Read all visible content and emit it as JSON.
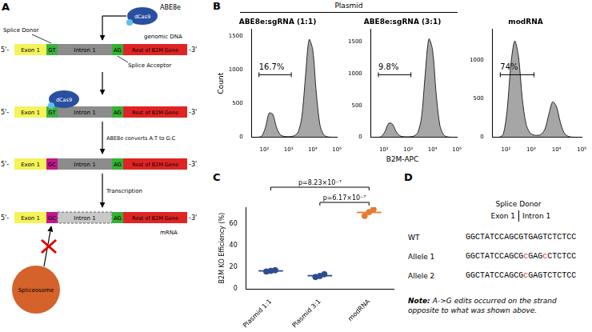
{
  "panel_a": {
    "label": "A",
    "enzyme": "ABE8e",
    "protein": "dCas9",
    "dna_label": "genomic DNA",
    "splice_donor": "Splice Donor",
    "splice_acceptor": "Splice Acceptor",
    "five_prime": "5'-",
    "three_prime": "-3'",
    "segments": {
      "exon": "Exon 1",
      "donor": "GT",
      "intron": "Intron 1",
      "acceptor": "AG",
      "rest": "Rest of B2M Gene"
    },
    "edited_donor": "GC",
    "steps": [
      "ABE8e converts A:T to G:C",
      "Transcription"
    ],
    "mrna_label": "mRNA",
    "spliceosome": "Spliceosome"
  },
  "panel_b": {
    "label": "B",
    "group_label": "Plasmid",
    "x_label": "B2M-APC"
  },
  "panel_c": {
    "label": "C"
  },
  "chart_data": [
    {
      "type": "area",
      "title": "ABE8e:sgRNA (1:1)",
      "color": "#a6a6a6",
      "log": "x",
      "grid": false,
      "x": [
        40,
        56,
        79,
        112,
        158,
        224,
        316,
        447,
        631,
        891,
        1259,
        1778,
        2512,
        3548,
        5012,
        7079,
        10000,
        14125,
        19953,
        28184,
        39811,
        56234,
        79433
      ],
      "values": [
        0,
        2,
        20,
        150,
        360,
        340,
        150,
        40,
        15,
        10,
        12,
        25,
        80,
        300,
        900,
        1450,
        1300,
        650,
        180,
        40,
        8,
        2,
        0
      ],
      "xlim": [
        30,
        100000
      ],
      "xticks": [
        {
          "value": 100,
          "label": "10²"
        },
        {
          "value": 1000,
          "label": "10³"
        },
        {
          "value": 10000,
          "label": "10⁴"
        },
        {
          "value": 100000,
          "label": "10⁵"
        }
      ],
      "ylim": [
        0,
        1600
      ],
      "yticks": [
        0,
        500,
        1000,
        1500
      ],
      "y_label": "Count",
      "gate": {
        "range": [
          60,
          1300
        ],
        "value": 16.7,
        "label": "16.7%"
      }
    },
    {
      "type": "area",
      "title": "ABE8e:sgRNA (3:1)",
      "color": "#a6a6a6",
      "log": "x",
      "grid": false,
      "x": [
        40,
        56,
        79,
        112,
        158,
        224,
        316,
        447,
        631,
        891,
        1259,
        1778,
        2512,
        3548,
        5012,
        7079,
        10000,
        14125,
        19953,
        28184,
        39811,
        56234,
        79433
      ],
      "values": [
        0,
        1,
        12,
        90,
        220,
        210,
        95,
        25,
        10,
        8,
        10,
        22,
        80,
        320,
        1000,
        1550,
        1380,
        680,
        190,
        40,
        8,
        2,
        0
      ],
      "xlim": [
        30,
        100000
      ],
      "xticks": [
        {
          "value": 100,
          "label": "10²"
        },
        {
          "value": 1000,
          "label": "10³"
        },
        {
          "value": 10000,
          "label": "10⁴"
        },
        {
          "value": 100000,
          "label": "10⁵"
        }
      ],
      "ylim": [
        0,
        1700
      ],
      "yticks": [
        0,
        500,
        1000,
        1500
      ],
      "gate": {
        "range": [
          60,
          1300
        ],
        "value": 9.8,
        "label": "9.8%"
      }
    },
    {
      "type": "area",
      "title": "modRNA",
      "color": "#a6a6a6",
      "log": "x",
      "grid": false,
      "x": [
        40,
        56,
        79,
        112,
        158,
        224,
        316,
        447,
        631,
        891,
        1259,
        1778,
        2512,
        3548,
        5012,
        7079,
        10000,
        14125,
        19953,
        28184,
        39811,
        56234,
        79433
      ],
      "values": [
        0,
        3,
        40,
        350,
        950,
        1250,
        1050,
        500,
        170,
        60,
        30,
        25,
        40,
        110,
        300,
        460,
        400,
        200,
        60,
        15,
        3,
        1,
        0
      ],
      "xlim": [
        30,
        100000
      ],
      "xticks": [
        {
          "value": 100,
          "label": "10²"
        },
        {
          "value": 1000,
          "label": "10³"
        },
        {
          "value": 10000,
          "label": "10⁴"
        },
        {
          "value": 100000,
          "label": "10⁵"
        }
      ],
      "ylim": [
        0,
        1400
      ],
      "yticks": [
        0,
        500,
        1000
      ],
      "gate": {
        "range": [
          60,
          1300
        ],
        "value": 74,
        "label": "74%"
      }
    },
    {
      "type": "dot",
      "grid": false,
      "categories": [
        "Plasmid 1:1",
        "Plasmid 3:1",
        "modRNA"
      ],
      "values": [
        [
          16.0,
          16.6,
          17.2
        ],
        [
          11.0,
          12.0,
          13.5
        ],
        [
          67.0,
          70.5,
          73.0
        ]
      ],
      "means": [
        16.6,
        12.2,
        70.2
      ],
      "colors": [
        "#2e4c8f",
        "#2e4c8f",
        "#e57a35"
      ],
      "ylim": [
        0,
        75
      ],
      "yticks": [
        0,
        20,
        40,
        60
      ],
      "y_label": "B2M KO Efficiency (%)",
      "comparisons": [
        {
          "between": [
            "Plasmid 1:1",
            "modRNA"
          ],
          "label": "p=8.23×10⁻⁷"
        },
        {
          "between": [
            "Plasmid 3:1",
            "modRNA"
          ],
          "label": "p=6.17×10⁻⁷"
        }
      ]
    }
  ],
  "panel_d": {
    "label": "D",
    "header": "Splice Donor",
    "regions": [
      "Exon 1",
      "Intron 1"
    ],
    "sequences": [
      {
        "name": "WT",
        "exon": "GGCTATCCAGC",
        "intron": "GTGAGTCTCTCC"
      },
      {
        "name": "Allele 1",
        "exon": "GGCTATCCAGC",
        "intron": "GcGAGcCTCTCC"
      },
      {
        "name": "Allele 2",
        "exon": "GGCTATCCAGC",
        "intron": "GcGAGTCTCTCC"
      }
    ],
    "note": {
      "lead": "Note:",
      "text": "A->G edits occurred on the strand opposite to what was shown above."
    }
  }
}
